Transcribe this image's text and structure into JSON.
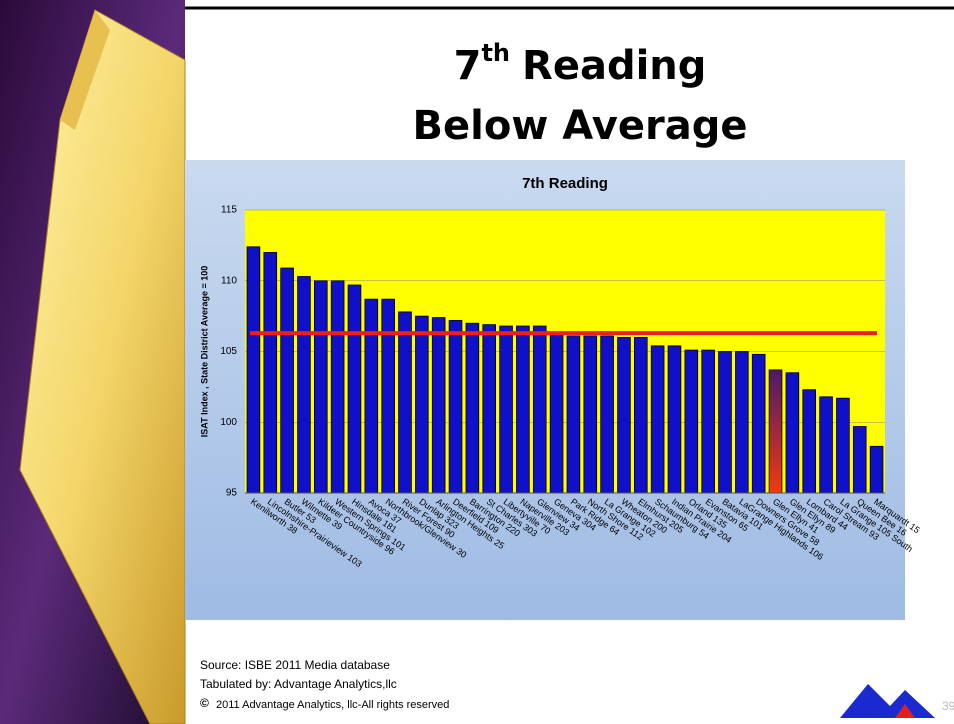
{
  "slide": {
    "title": {
      "number": "7",
      "suffix": "th",
      "word": "Reading",
      "line2": "Below Average"
    },
    "footer": {
      "source": "Source: ISBE 2011 Media database",
      "tabulated": "Tabulated by: Advantage Analytics,llc",
      "copyright_symbol": "©",
      "copyright": "2011 Advantage Analytics, llc-All rights reserved",
      "page_number": "39"
    }
  },
  "chart_data": {
    "type": "bar",
    "title": "7th Reading",
    "y_label": "ISAT Index , State District Average = 100",
    "categories": [
      "Kenilworth 38",
      "Lincolnshire-Prairieview 103",
      "Butler 53",
      "Wilmette 39",
      "Kildeer Countryside 96",
      "Western Springs 101",
      "Hinsdale 181",
      "Avoca 37",
      "Northbrook/Glenview 30",
      "River Forest 90",
      "Dunlap 323",
      "Arlington Heights 25",
      "Deerfield 109",
      "Barrington 220",
      "St Charles 303",
      "Libertyville 70",
      "Naperville 203",
      "Glenview 34",
      "Geneva 304",
      "Park Ridge 64",
      "North Shore 112",
      "La Grange 102",
      "Wheaton 200",
      "Elmhurst 205",
      "Schaumburg 54",
      "Indian Prairie 204",
      "Orland 135",
      "Evanston 65",
      "Batavia 101",
      "LaGrange Highlands 106",
      "Downers Grove 58",
      "Glen Ellyn 41",
      "Glen Ellyn 89",
      "Lombard 44",
      "Carol Stream 93",
      "La Grange 105 South",
      "Queen Bee 16",
      "Marquardt 15"
    ],
    "values": [
      112.4,
      112.0,
      110.9,
      110.3,
      110.0,
      110.0,
      109.7,
      108.7,
      108.7,
      107.8,
      107.5,
      107.4,
      107.2,
      107.0,
      106.9,
      106.8,
      106.8,
      106.8,
      106.2,
      106.1,
      106.1,
      106.1,
      106.0,
      106.0,
      105.4,
      105.4,
      105.1,
      105.1,
      105.0,
      105.0,
      104.8,
      103.7,
      103.5,
      102.3,
      101.8,
      101.7,
      99.7,
      98.3
    ],
    "color": "#1010c8",
    "highlight": {
      "category": "Glen Ellyn 41",
      "color": "#f03a10"
    },
    "reference_line": {
      "value": 106.3,
      "color": "#e8201e"
    },
    "ylim": [
      95,
      115
    ],
    "yticks": [
      95,
      100,
      105,
      110,
      115
    ],
    "grid": true,
    "plot_background": "#ffff00"
  }
}
